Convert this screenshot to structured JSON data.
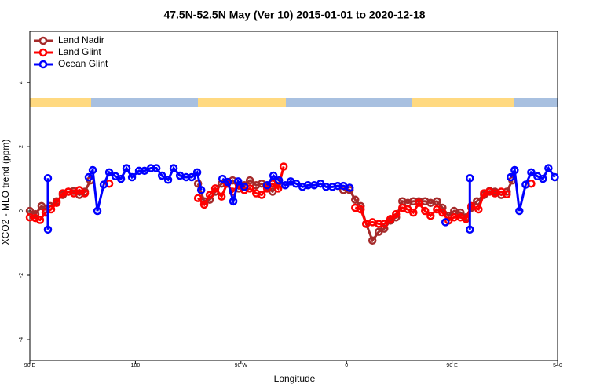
{
  "chart_data": {
    "type": "line",
    "title": "47.5N-52.5N May (Ver 10)   2015-01-01 to 2020-12-18",
    "x_label": "Longitude",
    "y_label": "XCO2 - MLO trend (ppm)",
    "xlim": [
      90,
      540
    ],
    "ylim": [
      -4.66,
      5.59
    ],
    "xticks": [
      {
        "value": 90,
        "label": "90 E"
      },
      180,
      {
        "value": 270,
        "label": "90 W"
      },
      {
        "value": 360,
        "label": "0"
      },
      {
        "value": 450,
        "label": "90 E"
      },
      540
    ],
    "yticks": [
      -4,
      -2,
      0,
      2,
      4
    ],
    "grid": false,
    "legend": "upper left",
    "series": [
      {
        "name": "Land Nadir",
        "color": "#a52a2a",
        "x": [
          90,
          94.7,
          100,
          103.4,
          107.4,
          112.8,
          118.1,
          122.8,
          127.5,
          132.2,
          136.9,
          141.6,
          null,
          233.4,
          238.7,
          243.4,
          248.1,
          253.5,
          258.2,
          262.9,
          268.2,
          272.9,
          277.6,
          283,
          287.7,
          292.3,
          297,
          301.7,
          null,
          357.3,
          362.7,
          367.4,
          372.1,
          376.8,
          382.1,
          387.5,
          392.2,
          397.5,
          402.2,
          407.6,
          412.3,
          417,
          421.7,
          427,
          431.7,
          437.1,
          441.8,
          447.1,
          451.8,
          457.2,
          461.9,
          466.5,
          471.2,
          477.3,
          482,
          486.6,
          492,
          496.7,
          501.4
        ],
        "values": [
          0.0,
          -0.1,
          0.15,
          0.05,
          0.15,
          0.3,
          0.5,
          0.6,
          0.62,
          0.5,
          0.6,
          0.95,
          null,
          0.85,
          0.3,
          0.35,
          0.6,
          0.85,
          0.9,
          0.95,
          0.7,
          0.8,
          0.95,
          0.8,
          0.85,
          0.75,
          0.6,
          0.9,
          null,
          0.65,
          0.65,
          0.35,
          0.15,
          -0.4,
          -0.92,
          -0.65,
          -0.55,
          -0.3,
          -0.2,
          0.3,
          0.25,
          0.3,
          0.3,
          0.3,
          0.25,
          0.3,
          0.1,
          -0.15,
          0.0,
          -0.05,
          -0.2,
          0.1,
          0.3,
          0.5,
          0.62,
          0.6,
          0.5,
          0.6,
          0.95
        ]
      },
      {
        "name": "Land Glint",
        "color": "#ff0000",
        "x": [
          90,
          94.7,
          98.7,
          103.4,
          108.1,
          112.8,
          118.1,
          122.8,
          127.5,
          132.2,
          136.9,
          null,
          157.7,
          null,
          233.4,
          238.7,
          243.4,
          248.1,
          253.5,
          258.2,
          262.9,
          268.2,
          272.9,
          277.6,
          283,
          287.7,
          292.3,
          297,
          301.7,
          306.4,
          null,
          367.4,
          372.1,
          376.8,
          382.1,
          387.5,
          392.2,
          397.5,
          402.2,
          407.6,
          412.3,
          417,
          421.7,
          427,
          431.7,
          437.1,
          441.8,
          447.1,
          451.8,
          457.2,
          461.9,
          466.5,
          472.6,
          477.3,
          482,
          486.6,
          492,
          496.7,
          null,
          517.5
        ],
        "values": [
          -0.2,
          -0.22,
          -0.28,
          -0.05,
          0.05,
          0.25,
          0.55,
          0.6,
          0.55,
          0.65,
          0.55,
          null,
          0.85,
          null,
          0.4,
          0.2,
          0.5,
          0.7,
          0.45,
          0.85,
          0.6,
          0.8,
          0.65,
          0.7,
          0.55,
          0.5,
          0.7,
          0.85,
          0.7,
          1.38,
          null,
          0.1,
          0.05,
          -0.4,
          -0.35,
          -0.4,
          -0.4,
          -0.25,
          -0.1,
          0.1,
          0.05,
          -0.05,
          0.25,
          0.0,
          -0.15,
          0.05,
          -0.05,
          -0.3,
          -0.2,
          -0.2,
          -0.25,
          0.15,
          0.05,
          0.55,
          0.6,
          0.55,
          0.6,
          0.52,
          null,
          0.85
        ]
      },
      {
        "name": "Ocean Glint",
        "color": "#0000ff",
        "x": [
          105.4,
          105.4,
          null,
          140.2,
          143.6,
          147.6,
          153,
          157.7,
          163,
          167.7,
          172.4,
          177.1,
          183.1,
          187.8,
          193.2,
          197.9,
          202.6,
          207.9,
          212.6,
          218,
          223.3,
          228,
          232.7,
          236.1,
          null,
          254.2,
          258.8,
          263.5,
          267.6,
          272.9,
          null,
          292.3,
          297.7,
          302.4,
          307.8,
          312.4,
          317.1,
          322.5,
          327.2,
          332.5,
          337.9,
          342.6,
          348,
          352.6,
          357.3,
          362.7,
          null,
          444.4,
          null,
          465.2,
          465.2,
          null,
          500,
          503.4,
          507.4,
          512.8,
          517.5,
          522.8,
          527.5,
          532.2,
          537.6
        ],
        "values": [
          1.02,
          -0.58,
          null,
          1.05,
          1.27,
          0.0,
          0.82,
          1.2,
          1.08,
          1.0,
          1.33,
          1.05,
          1.25,
          1.25,
          1.33,
          1.33,
          1.1,
          0.97,
          1.33,
          1.1,
          1.05,
          1.05,
          1.2,
          0.65,
          null,
          1.0,
          0.9,
          0.3,
          0.92,
          0.75,
          null,
          0.8,
          1.1,
          0.95,
          0.8,
          0.92,
          0.85,
          0.75,
          0.8,
          0.8,
          0.85,
          0.75,
          0.75,
          0.78,
          0.78,
          0.72,
          null,
          -0.35,
          null,
          1.02,
          -0.58,
          null,
          1.05,
          1.27,
          0.0,
          0.82,
          1.2,
          1.08,
          1.0,
          1.33,
          1.05
        ]
      }
    ]
  }
}
